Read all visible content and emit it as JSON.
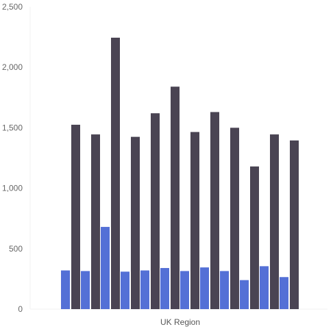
{
  "chart_data": {
    "type": "bar",
    "xlabel": "UK Region",
    "ylabel": "",
    "ylim": [
      0,
      2500
    ],
    "yticks": [
      0,
      500,
      1000,
      1500,
      2000,
      2500
    ],
    "ytick_labels": [
      "0",
      "500",
      "1,000",
      "1,500",
      "2,000",
      "2,500"
    ],
    "grid": false,
    "legend": "none",
    "categories": [
      "",
      "",
      "",
      "",
      "",
      "",
      "",
      "",
      "",
      "",
      "",
      ""
    ],
    "series": [
      {
        "color": "#5470d6",
        "values": [
          320,
          315,
          680,
          310,
          320,
          340,
          315,
          345,
          315,
          240,
          355,
          265
        ]
      },
      {
        "color": "#4a4453",
        "values": [
          1525,
          1445,
          2245,
          1425,
          1620,
          1840,
          1465,
          1630,
          1500,
          1180,
          1445,
          1395
        ]
      }
    ]
  }
}
